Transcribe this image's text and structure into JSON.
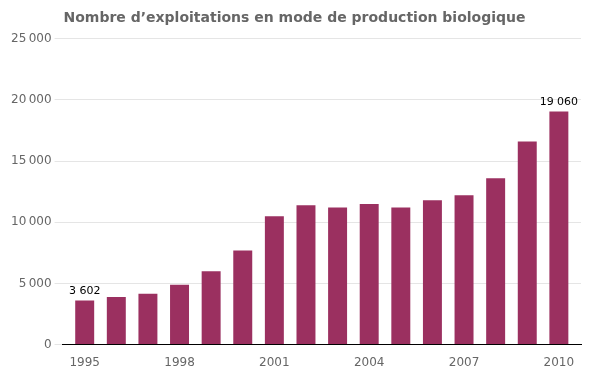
{
  "chart_data": {
    "type": "bar",
    "title": "Nombre d’exploitations en mode de production biologique",
    "x": [
      1995,
      1996,
      1997,
      1998,
      1999,
      2000,
      2001,
      2002,
      2003,
      2004,
      2005,
      2006,
      2007,
      2008,
      2009,
      2010
    ],
    "values": [
      3602,
      3900,
      4150,
      4900,
      6000,
      7700,
      10500,
      11400,
      11200,
      11500,
      11200,
      11800,
      12200,
      13600,
      16600,
      19060
    ],
    "color": "#9B3060",
    "xlim": [
      1994.3,
      2010.7
    ],
    "xticks": [
      1995,
      1998,
      2001,
      2004,
      2007,
      2010
    ],
    "ylim": [
      0,
      25000
    ],
    "yticks": [
      0,
      {
        "value": 5000,
        "label": "5 000"
      },
      {
        "value": 10000,
        "label": "10 000"
      },
      {
        "value": 15000,
        "label": "15 000"
      },
      {
        "value": 20000,
        "label": "20 000"
      },
      {
        "value": 25000,
        "label": "25 000"
      }
    ],
    "grid": true,
    "annotations": [
      {
        "text": "3 602",
        "x": 1995,
        "y": 3602
      },
      {
        "text": "19 060",
        "x": 2010,
        "y": 19060
      }
    ]
  }
}
